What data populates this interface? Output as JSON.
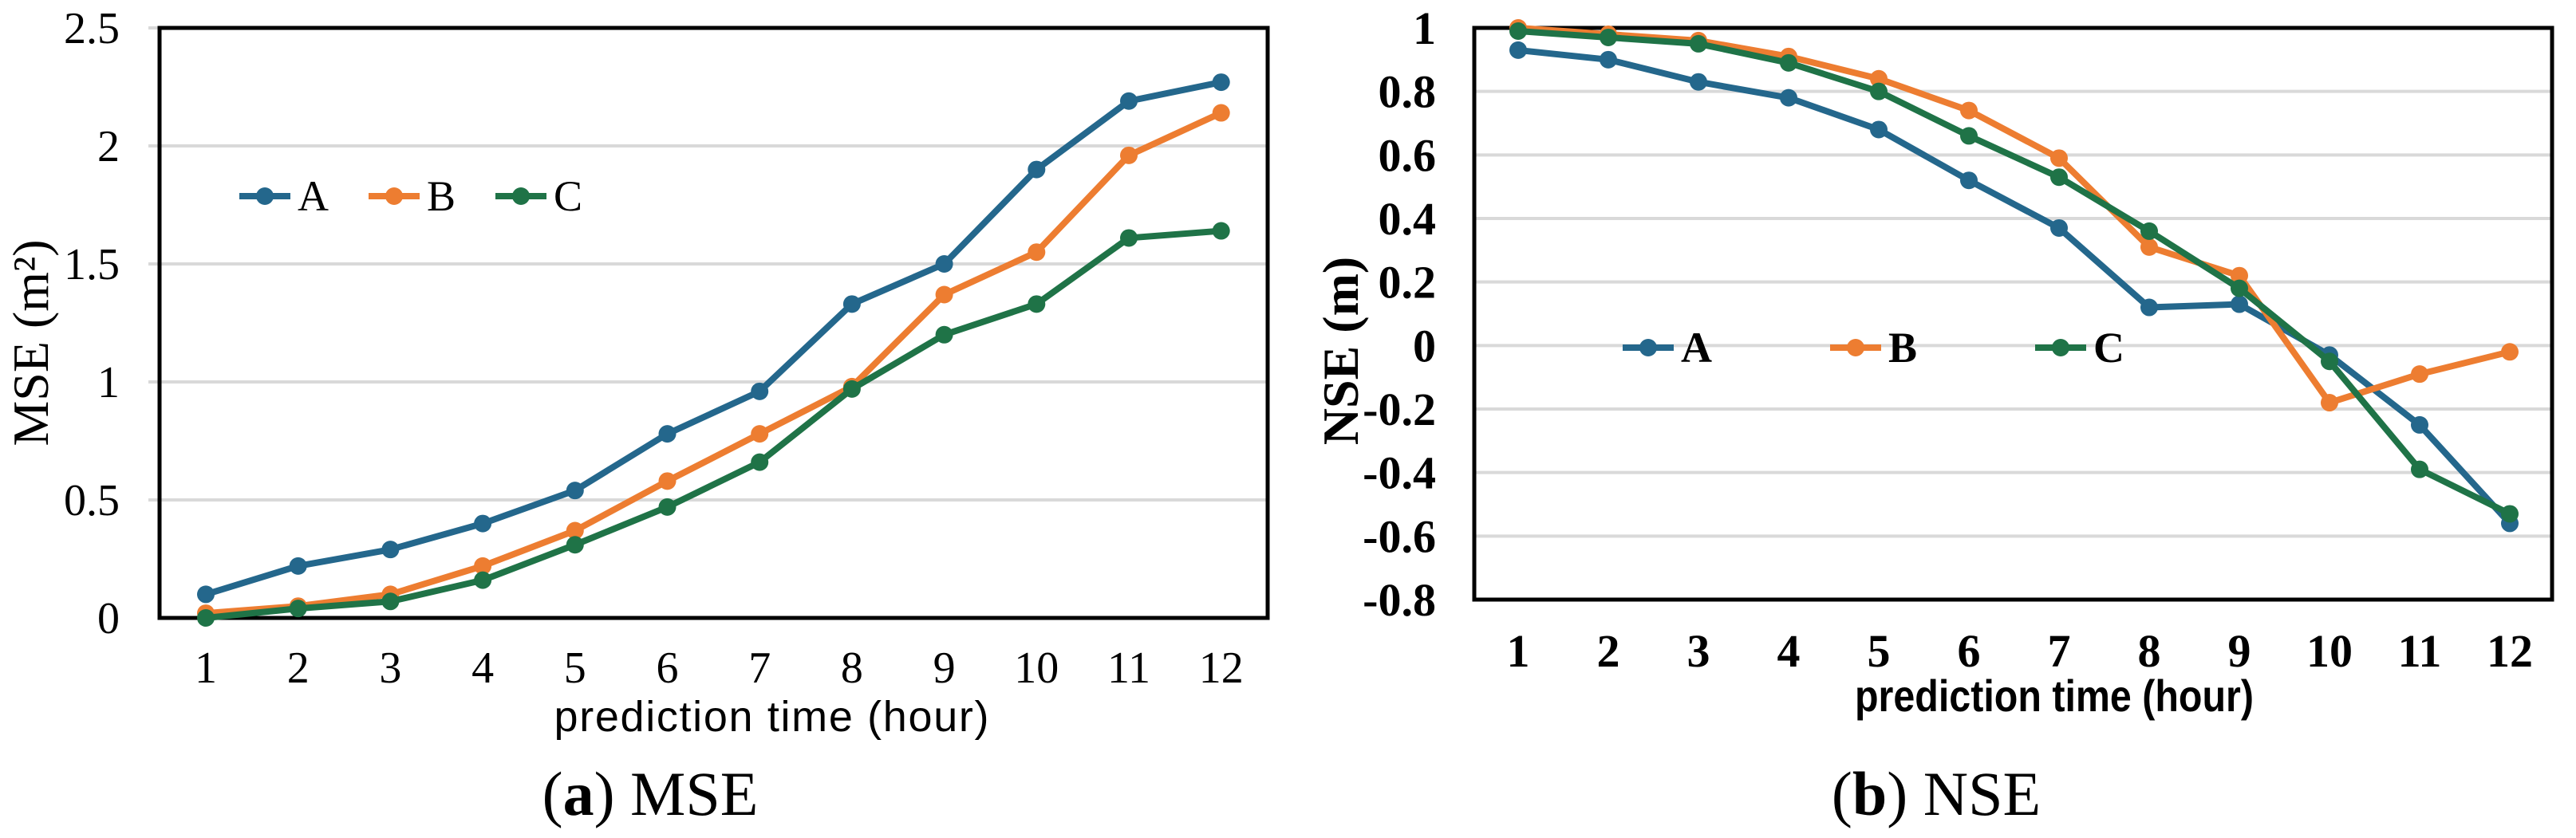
{
  "figure": {
    "captions": [
      {
        "open": "(",
        "letter": "a",
        "rest": ") MSE"
      },
      {
        "open": "(",
        "letter": "b",
        "rest": ") NSE"
      }
    ]
  },
  "colors": {
    "series_a": "#24678C",
    "series_b": "#ED7D31",
    "series_c": "#1F7347",
    "gridline": "#D9D9D9",
    "axis": "#000000",
    "background": "#FFFFFF"
  },
  "chart_data": [
    {
      "type": "line",
      "panel": "a",
      "caption": "(a) MSE",
      "xlabel": "prediction time (hour)",
      "ylabel": "MSE (m²)",
      "x": [
        1,
        2,
        3,
        4,
        5,
        6,
        7,
        8,
        9,
        10,
        11,
        12
      ],
      "x_tick_labels": [
        "1",
        "2",
        "3",
        "4",
        "5",
        "6",
        "7",
        "8",
        "9",
        "10",
        "11",
        "12"
      ],
      "ylim": [
        0,
        2.5
      ],
      "y_tick_values": [
        0,
        0.5,
        1,
        1.5,
        2,
        2.5
      ],
      "y_tick_labels": [
        "0",
        "0.5",
        "1",
        "1.5",
        "2",
        "2.5"
      ],
      "grid": "horizontal",
      "legend_position": "upper-left-inside",
      "series": [
        {
          "name": "A",
          "color_key": "series_a",
          "color": "#24678C",
          "values": [
            0.1,
            0.22,
            0.29,
            0.4,
            0.54,
            0.78,
            0.96,
            1.33,
            1.5,
            1.9,
            2.19,
            2.27
          ]
        },
        {
          "name": "B",
          "color_key": "series_b",
          "color": "#ED7D31",
          "values": [
            0.02,
            0.05,
            0.1,
            0.22,
            0.37,
            0.58,
            0.78,
            0.98,
            1.37,
            1.55,
            1.96,
            2.14
          ]
        },
        {
          "name": "C",
          "color_key": "series_c",
          "color": "#1F7347",
          "values": [
            0.0,
            0.04,
            0.07,
            0.16,
            0.31,
            0.47,
            0.66,
            0.97,
            1.2,
            1.33,
            1.61,
            1.64
          ]
        }
      ]
    },
    {
      "type": "line",
      "panel": "b",
      "caption": "(b) NSE",
      "xlabel": "prediction time (hour)",
      "ylabel": "NSE (m)",
      "x": [
        1,
        2,
        3,
        4,
        5,
        6,
        7,
        8,
        9,
        10,
        11,
        12
      ],
      "x_tick_labels": [
        "1",
        "2",
        "3",
        "4",
        "5",
        "6",
        "7",
        "8",
        "9",
        "10",
        "11",
        "12"
      ],
      "ylim": [
        -0.8,
        1.0
      ],
      "y_tick_values": [
        1.0,
        0.8,
        0.6,
        0.4,
        0.2,
        0,
        -0.2,
        -0.4,
        -0.6,
        -0.8
      ],
      "y_tick_labels": [
        "1",
        "0.8",
        "0.6",
        "0.4",
        "0.2",
        "0",
        "-0.2",
        "-0.4",
        "-0.6",
        "-0.8"
      ],
      "grid": "horizontal",
      "legend_position": "middle-inside",
      "series": [
        {
          "name": "A",
          "color_key": "series_a",
          "color": "#24678C",
          "values": [
            0.93,
            0.9,
            0.83,
            0.78,
            0.68,
            0.52,
            0.37,
            0.12,
            0.13,
            -0.03,
            -0.25,
            -0.56
          ]
        },
        {
          "name": "B",
          "color_key": "series_b",
          "color": "#ED7D31",
          "values": [
            1.0,
            0.98,
            0.96,
            0.91,
            0.84,
            0.74,
            0.59,
            0.31,
            0.22,
            -0.18,
            -0.09,
            -0.02
          ]
        },
        {
          "name": "C",
          "color_key": "series_c",
          "color": "#1F7347",
          "values": [
            0.99,
            0.97,
            0.95,
            0.89,
            0.8,
            0.66,
            0.53,
            0.36,
            0.18,
            -0.05,
            -0.39,
            -0.53
          ]
        }
      ]
    }
  ]
}
